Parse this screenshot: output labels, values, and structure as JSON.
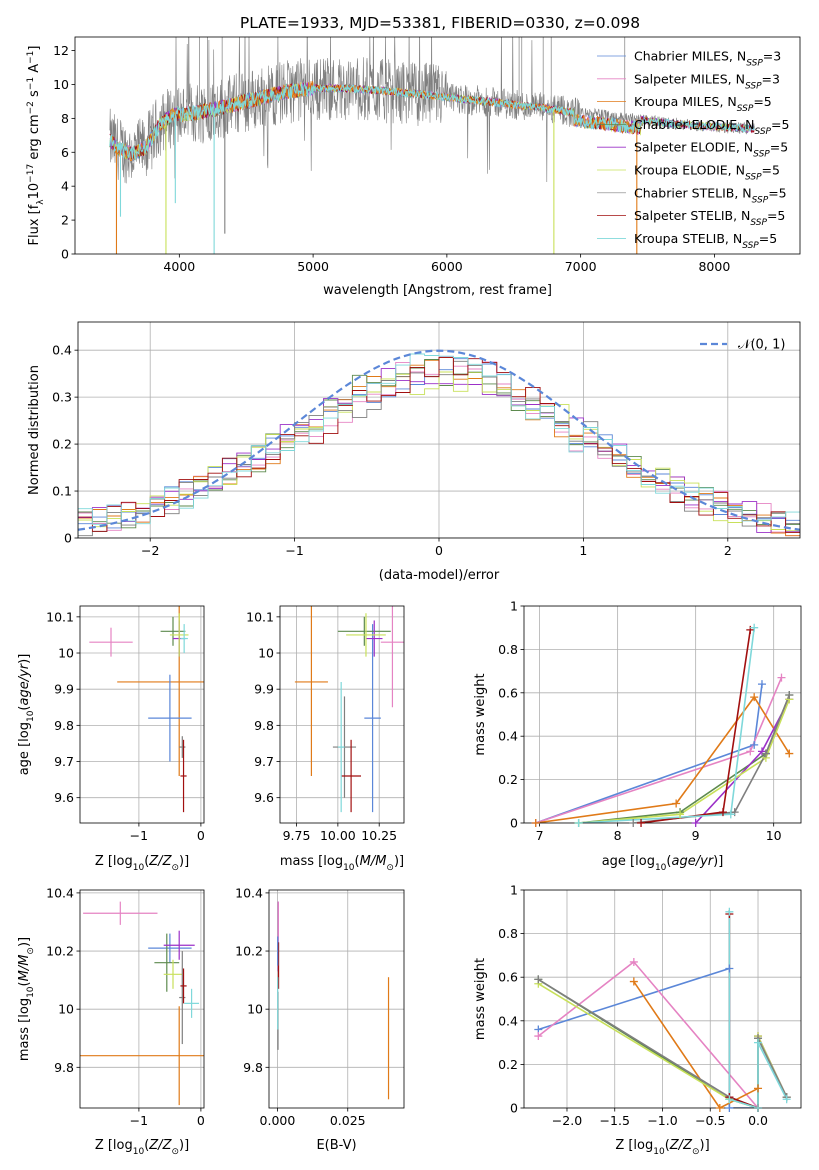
{
  "colors": {
    "blue": "#5b87d8",
    "pink": "#e583c3",
    "orange": "#e07a18",
    "darkgreen": "#5d8a4e",
    "purple": "#9b30c8",
    "yellowgreen": "#c8e05a",
    "gray": "#7f7f7f",
    "darkred": "#a10f0f",
    "cyan": "#7fd8da",
    "gaussian": "#5b87d8"
  },
  "chart_data": [
    {
      "id": "spectrum",
      "type": "line",
      "title": "PLATE=1933, MJD=53381, FIBERID=0330, z=0.098",
      "xlabel": "wavelength [Angstrom, rest frame]",
      "ylabel": "Flux [f_λ10^-17 erg cm^-2 s^-1 A^-1]",
      "xlim": [
        3220,
        8640
      ],
      "ylim": [
        0,
        12.8
      ],
      "xticks": [
        4000,
        5000,
        6000,
        7000,
        8000
      ],
      "yticks": [
        0,
        2,
        4,
        6,
        8,
        10,
        12
      ],
      "grid": false,
      "legend_placement": "upper-right",
      "series": [
        {
          "name": "Chabrier MILES, N_SSP=3",
          "color_key": "blue",
          "lw": 0.8
        },
        {
          "name": "Salpeter MILES, N_SSP=3",
          "color_key": "pink",
          "lw": 0.8
        },
        {
          "name": "Kroupa MILES, N_SSP=5",
          "color_key": "orange",
          "lw": 0.8
        },
        {
          "name": "Chabrier ELODIE, N_SSP=5",
          "color_key": "darkgreen",
          "lw": 0.8
        },
        {
          "name": "Salpeter ELODIE, N_SSP=5",
          "color_key": "purple",
          "lw": 0.8
        },
        {
          "name": "Kroupa ELODIE, N_SSP=5",
          "color_key": "yellowgreen",
          "lw": 0.8
        },
        {
          "name": "Chabrier STELIB, N_SSP=5",
          "color_key": "gray",
          "lw": 0.6
        },
        {
          "name": "Salpeter STELIB, N_SSP=5",
          "color_key": "darkred",
          "lw": 0.8
        },
        {
          "name": "Kroupa STELIB, N_SSP=5",
          "color_key": "cyan",
          "lw": 0.9
        }
      ],
      "model_continuum": [
        [
          3480,
          6.7
        ],
        [
          3550,
          6.2
        ],
        [
          3650,
          5.9
        ],
        [
          3750,
          6.3
        ],
        [
          3850,
          7.6
        ],
        [
          3950,
          8.2
        ],
        [
          4100,
          8.3
        ],
        [
          4300,
          8.6
        ],
        [
          4500,
          9.0
        ],
        [
          4700,
          9.4
        ],
        [
          4900,
          9.7
        ],
        [
          5100,
          9.8
        ],
        [
          5300,
          9.75
        ],
        [
          5500,
          9.65
        ],
        [
          5700,
          9.5
        ],
        [
          5900,
          9.35
        ],
        [
          6100,
          9.15
        ],
        [
          6300,
          9.0
        ],
        [
          6500,
          8.8
        ],
        [
          6700,
          8.65
        ],
        [
          6900,
          8.4
        ],
        [
          7100,
          8.25
        ],
        [
          7300,
          8.05
        ],
        [
          7500,
          7.85
        ],
        [
          7700,
          7.7
        ],
        [
          7900,
          7.55
        ],
        [
          8100,
          7.45
        ],
        [
          8300,
          7.4
        ]
      ],
      "orange_range": [
        3490,
        7430
      ],
      "data_range": [
        3480,
        8300
      ],
      "dips": [
        {
          "w": 3530,
          "c": "orange",
          "to": 0
        },
        {
          "w": 3560,
          "c": "cyan",
          "to": 2.2
        },
        {
          "w": 3900,
          "c": "yellowgreen",
          "to": 0
        },
        {
          "w": 3970,
          "c": "cyan",
          "to": 3.0
        },
        {
          "w": 4260,
          "c": "cyan",
          "to": 0
        },
        {
          "w": 4340,
          "c": "gray",
          "to": 1.2
        },
        {
          "w": 6800,
          "c": "yellowgreen",
          "to": 0
        },
        {
          "w": 7420,
          "c": "orange",
          "to": 0
        }
      ]
    },
    {
      "id": "residuals",
      "type": "histogram",
      "xlabel": "(data-model)/error",
      "ylabel": "Normed distribution",
      "xlim": [
        -2.5,
        2.5
      ],
      "ylim": [
        0,
        0.46
      ],
      "xticks": [
        -2,
        -1,
        0,
        1,
        2
      ],
      "yticks": [
        0.0,
        0.1,
        0.2,
        0.3,
        0.4
      ],
      "grid": true,
      "legend_placement": "upper-right",
      "legend": "N(0,1)",
      "gaussian": {
        "mu": 0,
        "sigma": 1
      }
    },
    {
      "id": "z-age",
      "type": "errorbar",
      "xlabel": "Z [log10(Z/Z⊙)]",
      "ylabel": "age [log10(age/yr)]",
      "xlim": [
        -1.95,
        0.05
      ],
      "ylim": [
        9.53,
        10.13
      ],
      "xticks": [
        -1,
        0
      ],
      "yticks": [
        9.6,
        9.7,
        9.8,
        9.9,
        10.0,
        10.1
      ],
      "grid": true,
      "points": [
        {
          "c": "pink",
          "x": -1.45,
          "xerr": 0.35,
          "y": 10.03,
          "yerr": 0.04
        },
        {
          "c": "orange",
          "x": -0.35,
          "xerr": 1.0,
          "y": 9.92,
          "yerr": 0.26
        },
        {
          "c": "blue",
          "x": -0.5,
          "xerr": 0.35,
          "y": 9.82,
          "yerr": 0.12
        },
        {
          "c": "darkgreen",
          "x": -0.45,
          "xerr": 0.2,
          "y": 10.06,
          "yerr": 0.04
        },
        {
          "c": "purple",
          "x": -0.35,
          "xerr": 0.1,
          "y": 10.04,
          "yerr": 0.05
        },
        {
          "c": "yellowgreen",
          "x": -0.35,
          "xerr": 0.15,
          "y": 10.05,
          "yerr": 0.06
        },
        {
          "c": "gray",
          "x": -0.3,
          "xerr": 0.05,
          "y": 9.74,
          "yerr": 0.03
        },
        {
          "c": "darkred",
          "x": -0.28,
          "xerr": 0.05,
          "y": 9.66,
          "yerr": 0.1
        },
        {
          "c": "cyan",
          "x": -0.27,
          "xerr": 0.06,
          "y": 10.04,
          "yerr": 0.04
        }
      ]
    },
    {
      "id": "mass-age",
      "type": "errorbar",
      "xlabel": "mass [log10(M/M⊙)]",
      "ylabel": "",
      "xlim": [
        9.65,
        10.4
      ],
      "ylim": [
        9.53,
        10.13
      ],
      "xticks": [
        9.75,
        10.0,
        10.25
      ],
      "xticklabels": [
        "9.75",
        "10.00",
        "10.25"
      ],
      "yticks": [
        9.6,
        9.7,
        9.8,
        9.9,
        10.0,
        10.1
      ],
      "grid": true,
      "points": [
        {
          "c": "pink",
          "x": 10.33,
          "xerr": 0.07,
          "y": 10.03,
          "yerr": 0.18
        },
        {
          "c": "orange",
          "x": 9.84,
          "xerr": 0.1,
          "y": 9.92,
          "yerr": 0.26
        },
        {
          "c": "blue",
          "x": 10.21,
          "xerr": 0.05,
          "y": 9.82,
          "yerr": 0.26
        },
        {
          "c": "darkgreen",
          "x": 10.16,
          "xerr": 0.16,
          "y": 10.06,
          "yerr": 0.04
        },
        {
          "c": "purple",
          "x": 10.22,
          "xerr": 0.05,
          "y": 10.04,
          "yerr": 0.05
        },
        {
          "c": "yellowgreen",
          "x": 10.17,
          "xerr": 0.12,
          "y": 10.05,
          "yerr": 0.06
        },
        {
          "c": "gray",
          "x": 10.04,
          "xerr": 0.07,
          "y": 9.74,
          "yerr": 0.14
        },
        {
          "c": "darkred",
          "x": 10.08,
          "xerr": 0.06,
          "y": 9.66,
          "yerr": 0.1
        },
        {
          "c": "cyan",
          "x": 10.02,
          "xerr": 0.02,
          "y": 9.74,
          "yerr": 0.18
        }
      ]
    },
    {
      "id": "age-weight",
      "type": "line",
      "xlabel": "age [log10(age/yr)]",
      "ylabel": "mass weight",
      "xlim": [
        6.8,
        10.35
      ],
      "ylim": [
        0,
        1.0
      ],
      "xticks": [
        7,
        8,
        9,
        10
      ],
      "yticks": [
        0.0,
        0.2,
        0.4,
        0.6,
        0.8,
        1.0
      ],
      "grid": true,
      "series": [
        {
          "c": "blue",
          "pts": [
            [
              6.95,
              0.0
            ],
            [
              9.75,
              0.36
            ],
            [
              9.85,
              0.64
            ]
          ]
        },
        {
          "c": "pink",
          "pts": [
            [
              6.95,
              0.0
            ],
            [
              9.7,
              0.33
            ],
            [
              10.1,
              0.67
            ]
          ]
        },
        {
          "c": "orange",
          "pts": [
            [
              6.95,
              0.0
            ],
            [
              8.75,
              0.09
            ],
            [
              9.75,
              0.58
            ],
            [
              10.2,
              0.32
            ]
          ]
        },
        {
          "c": "darkgreen",
          "pts": [
            [
              7.5,
              0.0
            ],
            [
              8.8,
              0.05
            ],
            [
              9.9,
              0.32
            ],
            [
              10.2,
              0.59
            ]
          ]
        },
        {
          "c": "purple",
          "pts": [
            [
              9.0,
              0.0
            ],
            [
              9.85,
              0.33
            ],
            [
              10.2,
              0.57
            ]
          ]
        },
        {
          "c": "yellowgreen",
          "pts": [
            [
              7.5,
              0.0
            ],
            [
              8.8,
              0.04
            ],
            [
              9.9,
              0.3
            ],
            [
              10.2,
              0.57
            ]
          ]
        },
        {
          "c": "gray",
          "pts": [
            [
              8.2,
              0.0
            ],
            [
              9.5,
              0.05
            ],
            [
              9.9,
              0.32
            ],
            [
              10.2,
              0.59
            ]
          ]
        },
        {
          "c": "darkred",
          "pts": [
            [
              8.3,
              0.0
            ],
            [
              9.35,
              0.05
            ],
            [
              9.7,
              0.89
            ]
          ]
        },
        {
          "c": "cyan",
          "pts": [
            [
              7.5,
              0.0
            ],
            [
              9.45,
              0.04
            ],
            [
              9.75,
              0.9
            ]
          ]
        }
      ]
    },
    {
      "id": "z-mass",
      "type": "errorbar",
      "xlabel": "Z [log10(Z/Z⊙)]",
      "ylabel": "mass [log10(M/M⊙)]",
      "xlim": [
        -1.95,
        0.05
      ],
      "ylim": [
        9.66,
        10.41
      ],
      "xticks": [
        -1,
        0
      ],
      "yticks": [
        9.8,
        10.0,
        10.2,
        10.4
      ],
      "grid": true,
      "points": [
        {
          "c": "pink",
          "x": -1.3,
          "xerr": 0.6,
          "y": 10.33,
          "yerr": 0.04
        },
        {
          "c": "orange",
          "x": -0.35,
          "xerr": 1.6,
          "y": 9.84,
          "yerr": 0.17
        },
        {
          "c": "blue",
          "x": -0.5,
          "xerr": 0.35,
          "y": 10.21,
          "yerr": 0.05
        },
        {
          "c": "darkgreen",
          "x": -0.55,
          "xerr": 0.2,
          "y": 10.16,
          "yerr": 0.1
        },
        {
          "c": "purple",
          "x": -0.35,
          "xerr": 0.25,
          "y": 10.22,
          "yerr": 0.05
        },
        {
          "c": "yellowgreen",
          "x": -0.45,
          "xerr": 0.15,
          "y": 10.12,
          "yerr": 0.05
        },
        {
          "c": "gray",
          "x": -0.3,
          "xerr": 0.05,
          "y": 10.04,
          "yerr": 0.16
        },
        {
          "c": "darkred",
          "x": -0.28,
          "xerr": 0.05,
          "y": 10.08,
          "yerr": 0.06
        },
        {
          "c": "cyan",
          "x": -0.15,
          "xerr": 0.12,
          "y": 10.02,
          "yerr": 0.05
        }
      ]
    },
    {
      "id": "ebv-mass",
      "type": "errorbar",
      "xlabel": "E(B-V)",
      "ylabel": "",
      "xlim": [
        -0.003,
        0.045
      ],
      "ylim": [
        9.66,
        10.41
      ],
      "xticks": [
        0.0,
        0.025
      ],
      "xticklabels": [
        "0.000",
        "0.025"
      ],
      "yticks": [
        9.8,
        10.0,
        10.2,
        10.4
      ],
      "grid": true,
      "points": [
        {
          "c": "orange",
          "x": 0.0395,
          "xerr": 0,
          "y": 9.9,
          "yerr": 0.21
        },
        {
          "c": "purple",
          "x": 0.0003,
          "xerr": 0,
          "y": 10.25,
          "yerr": 0.12
        },
        {
          "c": "pink",
          "x": 0.0003,
          "xerr": 0,
          "y": 10.3,
          "yerr": 0.07
        },
        {
          "c": "darkred",
          "x": 0.0004,
          "xerr": 0,
          "y": 10.15,
          "yerr": 0.08
        },
        {
          "c": "gray",
          "x": 0.0002,
          "xerr": 0,
          "y": 9.96,
          "yerr": 0.1
        },
        {
          "c": "cyan",
          "x": 0.0001,
          "xerr": 0,
          "y": 10.02,
          "yerr": 0.09
        },
        {
          "c": "blue",
          "x": 0.0001,
          "xerr": 0,
          "y": 10.2,
          "yerr": 0.05
        }
      ]
    },
    {
      "id": "z-weight",
      "type": "line",
      "xlabel": "Z [log10(Z/Z⊙)]",
      "ylabel": "mass weight",
      "xlim": [
        -2.45,
        0.45
      ],
      "ylim": [
        0,
        1.0
      ],
      "xticks": [
        -2.0,
        -1.5,
        -1.0,
        -0.5,
        0.0
      ],
      "xticklabels": [
        "−2.0",
        "−1.5",
        "−1.0",
        "−0.5",
        "0.0"
      ],
      "yticks": [
        0.0,
        0.2,
        0.4,
        0.6,
        0.8,
        1.0
      ],
      "grid": true,
      "series": [
        {
          "c": "blue",
          "pts": [
            [
              -2.3,
              0.36
            ],
            [
              -0.3,
              0.64
            ],
            [
              -0.3,
              0.0
            ],
            [
              0.0,
              0.0
            ]
          ]
        },
        {
          "c": "pink",
          "pts": [
            [
              -2.3,
              0.33
            ],
            [
              -1.3,
              0.67
            ],
            [
              0.0,
              0.0
            ]
          ]
        },
        {
          "c": "orange",
          "pts": [
            [
              -1.3,
              0.58
            ],
            [
              -0.4,
              0.0
            ],
            [
              0.0,
              0.09
            ]
          ]
        },
        {
          "c": "darkgreen",
          "pts": [
            [
              -2.3,
              0.59
            ],
            [
              -0.3,
              0.04
            ],
            [
              0.0,
              0.0
            ],
            [
              0.0,
              0.32
            ],
            [
              0.3,
              0.05
            ]
          ]
        },
        {
          "c": "purple",
          "pts": [
            [
              -0.3,
              0.05
            ],
            [
              0.0,
              0.0
            ],
            [
              0.0,
              0.33
            ],
            [
              0.3,
              0.05
            ]
          ]
        },
        {
          "c": "yellowgreen",
          "pts": [
            [
              -2.3,
              0.57
            ],
            [
              -0.3,
              0.04
            ],
            [
              0.0,
              0.0
            ],
            [
              0.0,
              0.33
            ],
            [
              0.3,
              0.05
            ]
          ]
        },
        {
          "c": "gray",
          "pts": [
            [
              -2.3,
              0.59
            ],
            [
              -0.3,
              0.05
            ],
            [
              0.0,
              0.0
            ],
            [
              0.0,
              0.32
            ],
            [
              0.3,
              0.05
            ]
          ]
        },
        {
          "c": "darkred",
          "pts": [
            [
              -0.3,
              0.89
            ],
            [
              -0.3,
              0.05
            ],
            [
              0.0,
              0.0
            ]
          ]
        },
        {
          "c": "cyan",
          "pts": [
            [
              -0.3,
              0.9
            ],
            [
              -0.3,
              0.04
            ],
            [
              0.0,
              0.0
            ],
            [
              0.0,
              0.3
            ],
            [
              0.3,
              0.04
            ]
          ]
        }
      ]
    }
  ]
}
